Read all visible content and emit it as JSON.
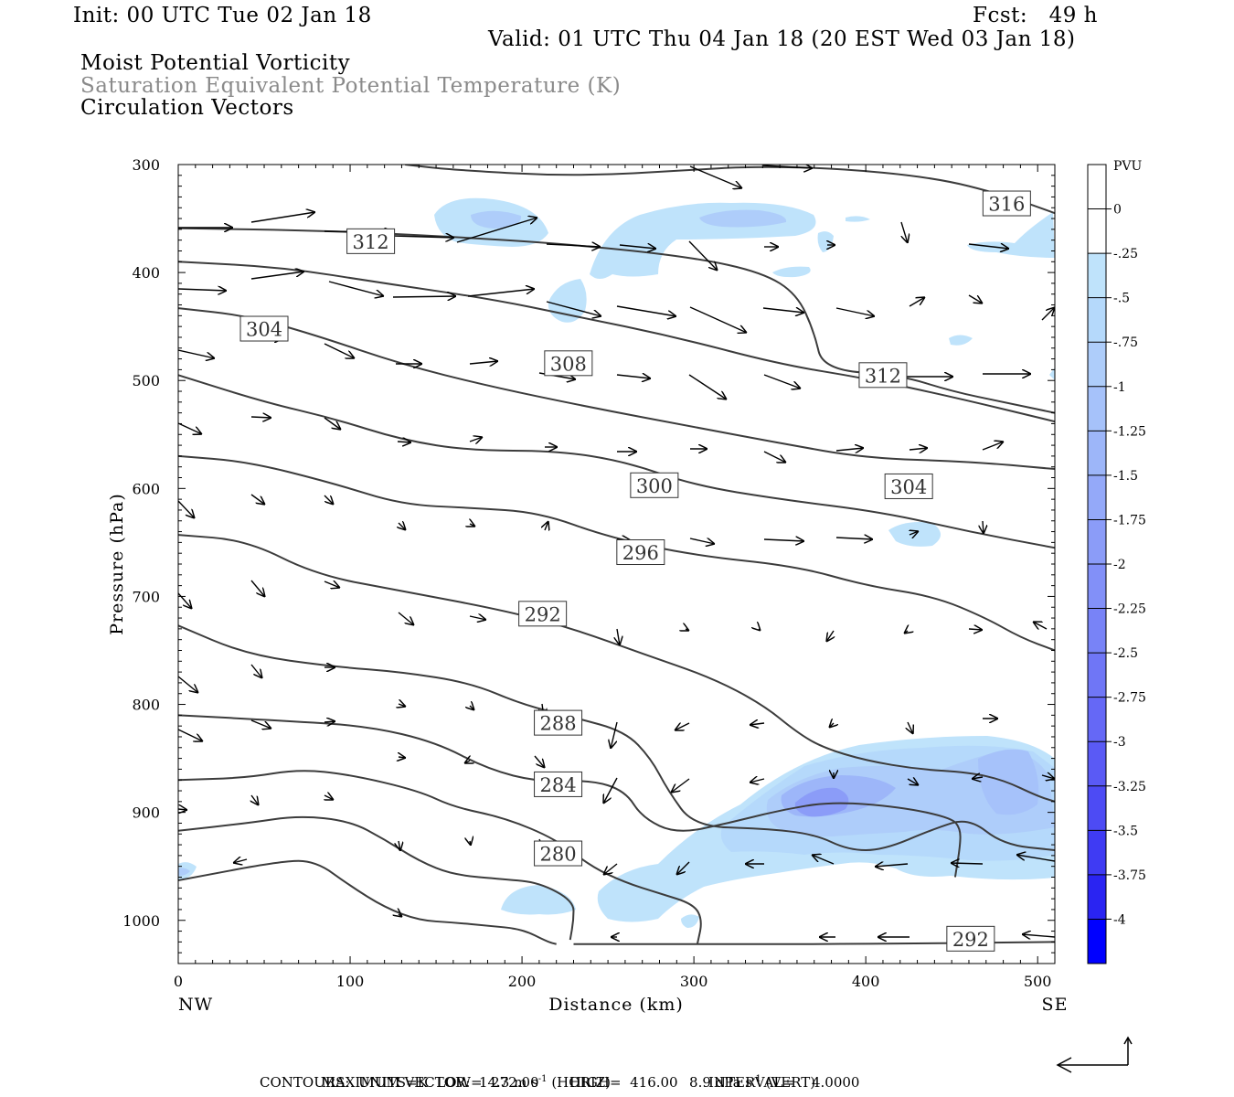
{
  "header": {
    "init": "Init: 00 UTC Tue 02 Jan 18",
    "fcst": "Fcst:   49 h",
    "valid": "Valid: 01 UTC Thu 04 Jan 18 (20 EST Wed 03 Jan 18)",
    "field1": "Moist Potential Vorticity",
    "field2": "Saturation Equivalent Potential Temperature (K)",
    "field3": "Circulation Vectors"
  },
  "footer": {
    "max_vector_label": "MAXIMUM VECTOR:",
    "horiz": "14.3 m s",
    "horiz_exp": "-1",
    "horiz_tag": " (HORIZ)",
    "vert": "8.9 dPa s",
    "vert_exp": "-1",
    "vert_tag": " (VERT)",
    "contours": "CONTOURS:  UNITS=K  LOW=  272.00       HIGH=  416.00       INTERVAL=    4.0000"
  },
  "chart_data": {
    "type": "cross-section",
    "xlabel": "Distance (km)",
    "ylabel": "Pressure (hPa)",
    "xlim": [
      0,
      510
    ],
    "ylim": [
      1040,
      300
    ],
    "x_ticks": [
      "0",
      "100",
      "200",
      "300",
      "400",
      "500"
    ],
    "y_ticks": [
      "300",
      "400",
      "500",
      "600",
      "700",
      "800",
      "900",
      "1000"
    ],
    "x_end_labels": {
      "left": "NW",
      "right": "SE"
    },
    "colorbar": {
      "title": "PVU",
      "labels": [
        "0",
        "-.25",
        "-.5",
        "-.75",
        "-1",
        "-1.25",
        "-1.5",
        "-1.75",
        "-2",
        "-2.25",
        "-2.5",
        "-2.75",
        "-3",
        "-3.25",
        "-3.5",
        "-3.75",
        "-4"
      ],
      "colors": [
        "#ffffff",
        "#ffffff",
        "#bfe3fb",
        "#b5d9fb",
        "#aecdfa",
        "#a6c2fa",
        "#9db6f9",
        "#94a9f9",
        "#8b9cf8",
        "#8290f8",
        "#7883f7",
        "#6f76f6",
        "#6568f6",
        "#5a5af5",
        "#4d4bf4",
        "#3f3bf3",
        "#2a24f2",
        "#0000ff"
      ]
    },
    "contour_labels": [
      {
        "text": "316",
        "x": 482,
        "p": 336
      },
      {
        "text": "312",
        "x": 112,
        "p": 371
      },
      {
        "text": "304",
        "x": 50,
        "p": 452
      },
      {
        "text": "308",
        "x": 227,
        "p": 484
      },
      {
        "text": "312",
        "x": 410,
        "p": 495
      },
      {
        "text": "300",
        "x": 277,
        "p": 597
      },
      {
        "text": "304",
        "x": 425,
        "p": 598
      },
      {
        "text": "296",
        "x": 269,
        "p": 659
      },
      {
        "text": "292",
        "x": 212,
        "p": 716
      },
      {
        "text": "288",
        "x": 221,
        "p": 817
      },
      {
        "text": "284",
        "x": 221,
        "p": 874
      },
      {
        "text": "280",
        "x": 221,
        "p": 938
      },
      {
        "text": "292",
        "x": 461,
        "p": 1017
      }
    ],
    "theta_e_contours": [
      {
        "level": 316,
        "pts": [
          [
            132,
            300
          ],
          [
            160,
            305
          ],
          [
            230,
            311
          ],
          [
            300,
            305
          ],
          [
            330,
            302
          ],
          [
            380,
            303
          ],
          [
            440,
            312
          ],
          [
            480,
            328
          ],
          [
            510,
            345
          ]
        ]
      },
      {
        "level": 312,
        "pts": [
          [
            0,
            359
          ],
          [
            80,
            361
          ],
          [
            150,
            366
          ],
          [
            230,
            374
          ],
          [
            300,
            386
          ],
          [
            340,
            400
          ],
          [
            360,
            420
          ],
          [
            370,
            455
          ],
          [
            375,
            490
          ],
          [
            420,
            495
          ],
          [
            450,
            510
          ],
          [
            480,
            520
          ],
          [
            510,
            530
          ]
        ]
      },
      {
        "level": 308,
        "pts": [
          [
            0,
            390
          ],
          [
            60,
            395
          ],
          [
            120,
            410
          ],
          [
            180,
            424
          ],
          [
            230,
            440
          ],
          [
            290,
            460
          ],
          [
            350,
            485
          ],
          [
            400,
            498
          ],
          [
            450,
            515
          ],
          [
            510,
            538
          ]
        ]
      },
      {
        "level": 304,
        "pts": [
          [
            0,
            433
          ],
          [
            40,
            440
          ],
          [
            80,
            458
          ],
          [
            130,
            485
          ],
          [
            180,
            505
          ],
          [
            240,
            525
          ],
          [
            300,
            543
          ],
          [
            350,
            558
          ],
          [
            400,
            572
          ],
          [
            460,
            575
          ],
          [
            510,
            582
          ]
        ]
      },
      {
        "level": 300,
        "pts": [
          [
            0,
            495
          ],
          [
            50,
            520
          ],
          [
            90,
            535
          ],
          [
            130,
            555
          ],
          [
            170,
            565
          ],
          [
            220,
            565
          ],
          [
            260,
            575
          ],
          [
            300,
            597
          ],
          [
            350,
            610
          ],
          [
            410,
            622
          ],
          [
            460,
            640
          ],
          [
            510,
            655
          ]
        ]
      },
      {
        "level": 296,
        "pts": [
          [
            0,
            570
          ],
          [
            40,
            575
          ],
          [
            90,
            595
          ],
          [
            130,
            615
          ],
          [
            170,
            618
          ],
          [
            210,
            622
          ],
          [
            250,
            645
          ],
          [
            300,
            662
          ],
          [
            360,
            672
          ],
          [
            400,
            690
          ],
          [
            440,
            700
          ],
          [
            470,
            720
          ],
          [
            490,
            738
          ],
          [
            510,
            750
          ]
        ]
      },
      {
        "level": 292,
        "pts": [
          [
            0,
            643
          ],
          [
            40,
            648
          ],
          [
            80,
            680
          ],
          [
            130,
            695
          ],
          [
            190,
            713
          ],
          [
            230,
            730
          ],
          [
            270,
            753
          ],
          [
            310,
            775
          ],
          [
            340,
            800
          ],
          [
            360,
            826
          ],
          [
            375,
            840
          ],
          [
            400,
            852
          ],
          [
            430,
            860
          ],
          [
            460,
            863
          ],
          [
            480,
            870
          ],
          [
            500,
            885
          ],
          [
            510,
            890
          ]
        ]
      },
      {
        "level": 288,
        "pts": [
          [
            0,
            727
          ],
          [
            40,
            754
          ],
          [
            90,
            765
          ],
          [
            130,
            770
          ],
          [
            170,
            780
          ],
          [
            200,
            800
          ],
          [
            230,
            812
          ],
          [
            260,
            825
          ],
          [
            275,
            850
          ],
          [
            285,
            880
          ],
          [
            300,
            913
          ],
          [
            340,
            915
          ],
          [
            370,
            920
          ],
          [
            390,
            935
          ],
          [
            410,
            935
          ],
          [
            440,
            915
          ],
          [
            460,
            905
          ],
          [
            480,
            930
          ],
          [
            510,
            935
          ]
        ]
      },
      {
        "level": 284,
        "pts": [
          [
            0,
            810
          ],
          [
            60,
            815
          ],
          [
            110,
            820
          ],
          [
            150,
            835
          ],
          [
            180,
            860
          ],
          [
            210,
            872
          ],
          [
            240,
            870
          ],
          [
            260,
            880
          ],
          [
            270,
            905
          ],
          [
            290,
            920
          ],
          [
            320,
            910
          ],
          [
            350,
            898
          ],
          [
            380,
            890
          ],
          [
            420,
            895
          ],
          [
            450,
            905
          ],
          [
            455,
            915
          ],
          [
            455,
            930
          ],
          [
            452,
            960
          ]
        ]
      },
      {
        "level": 280,
        "pts": [
          [
            0,
            870
          ],
          [
            40,
            868
          ],
          [
            70,
            860
          ],
          [
            100,
            865
          ],
          [
            140,
            880
          ],
          [
            160,
            895
          ],
          [
            190,
            905
          ],
          [
            220,
            925
          ],
          [
            240,
            950
          ],
          [
            260,
            965
          ],
          [
            280,
            975
          ],
          [
            300,
            985
          ],
          [
            305,
            1000
          ],
          [
            302,
            1022
          ]
        ]
      },
      {
        "level": 276,
        "pts": [
          [
            0,
            917
          ],
          [
            40,
            910
          ],
          [
            70,
            903
          ],
          [
            100,
            908
          ],
          [
            120,
            925
          ],
          [
            140,
            945
          ],
          [
            160,
            958
          ],
          [
            190,
            962
          ],
          [
            210,
            965
          ],
          [
            230,
            982
          ],
          [
            230,
            1000
          ],
          [
            228,
            1018
          ]
        ]
      },
      {
        "level": 272,
        "pts": [
          [
            0,
            963
          ],
          [
            60,
            945
          ],
          [
            80,
            945
          ],
          [
            100,
            968
          ],
          [
            120,
            988
          ],
          [
            140,
            1000
          ],
          [
            160,
            1002
          ],
          [
            180,
            1005
          ],
          [
            200,
            1008
          ],
          [
            215,
            1020
          ],
          [
            220,
            1022
          ]
        ]
      },
      {
        "level": 292,
        "pts": [
          [
            230,
            1022
          ],
          [
            300,
            1022
          ],
          [
            400,
            1022
          ],
          [
            510,
            1020
          ]
        ]
      }
    ]
  }
}
